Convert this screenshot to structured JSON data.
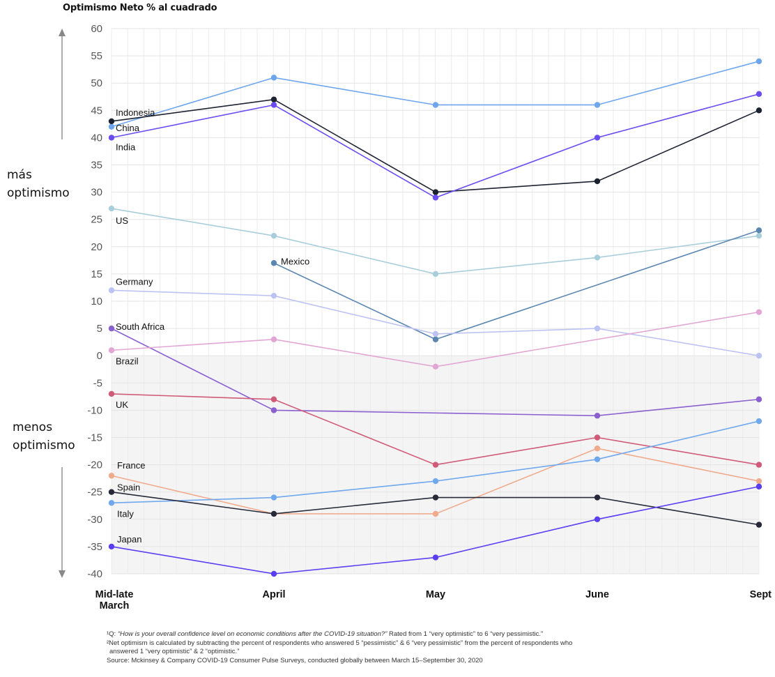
{
  "subtitle": "Optimismo Neto % al cuadrado",
  "side_labels": {
    "more": [
      "más",
      "optimismo"
    ],
    "less": [
      "menos",
      "optimismo"
    ]
  },
  "footnotes": {
    "note1_prefix": "¹Q: ",
    "note1_question": "“How is your overall confidence level on economic conditions after the COVID-19 situation?”",
    "note1_suffix": " Rated from 1 “very optimistic” to 6 “very pessimistic.”",
    "note2_line1": "²Net optimism is calculated by subtracting the percent of respondents who answered 5 “pessimistic” & 6 “very pessimistic” from the percent of respondents who",
    "note2_line2": "answered 1 “very optimistic” & 2 “optimistic.”",
    "source": "Source: Mckinsey & Company COVID-19 Consumer Pulse Surveys, conducted globally between March 15–September 30, 2020"
  },
  "chart_data": {
    "type": "line",
    "title": "",
    "ylabel": "Optimismo Neto % al cuadrado",
    "xlabel": "",
    "categories": [
      "Mid-late\nMarch",
      "April",
      "May",
      "June",
      "Sept"
    ],
    "ylim": [
      -40,
      60
    ],
    "yticks": [
      60,
      55,
      50,
      45,
      40,
      35,
      30,
      25,
      20,
      15,
      10,
      5,
      0,
      -5,
      -10,
      -15,
      -20,
      -25,
      -30,
      -35,
      -40
    ],
    "grid": true,
    "shaded_negative_region": true,
    "series": [
      {
        "name": "China",
        "color": "#6ea6ee",
        "values": [
          42,
          51,
          46,
          46,
          54
        ]
      },
      {
        "name": "Indonesia",
        "color": "#1c2230",
        "values": [
          43,
          47,
          30,
          32,
          45
        ]
      },
      {
        "name": "India",
        "color": "#6b4cf0",
        "values": [
          40,
          46,
          29,
          40,
          48
        ]
      },
      {
        "name": "US",
        "color": "#a9cedb",
        "values": [
          27,
          22,
          15,
          18,
          22
        ]
      },
      {
        "name": "Mexico",
        "color": "#5b86b0",
        "values": [
          null,
          17,
          3,
          null,
          23
        ]
      },
      {
        "name": "Germany",
        "color": "#bcc3f3",
        "values": [
          12,
          11,
          4,
          5,
          0
        ]
      },
      {
        "name": "South Africa",
        "color": "#8a5fcf",
        "values": [
          5,
          -10,
          null,
          -11,
          -8
        ]
      },
      {
        "name": "Brazil",
        "color": "#e2a6d4",
        "values": [
          1,
          3,
          -2,
          null,
          8
        ]
      },
      {
        "name": "UK",
        "color": "#d05a78",
        "values": [
          -7,
          -8,
          -20,
          -15,
          -20
        ]
      },
      {
        "name": "France",
        "color": "#f0ab8d",
        "values": [
          -22,
          -29,
          -29,
          -17,
          -23
        ]
      },
      {
        "name": "Italy",
        "color": "#70a8ee",
        "values": [
          -27,
          -26,
          -23,
          -19,
          -12
        ]
      },
      {
        "name": "Spain",
        "color": "#262a38",
        "values": [
          -25,
          -29,
          -26,
          -26,
          -31
        ]
      },
      {
        "name": "Japan",
        "color": "#5a3ff2",
        "values": [
          -35,
          -40,
          -37,
          -30,
          -24
        ]
      }
    ]
  }
}
